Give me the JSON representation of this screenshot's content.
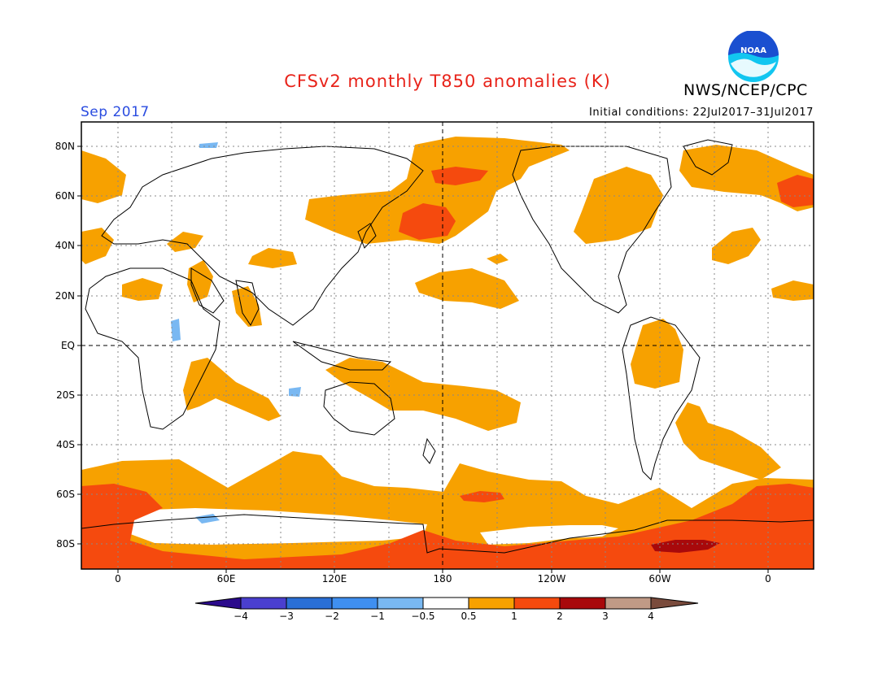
{
  "header": {
    "title": "CFSv2 monthly T850 anomalies (K)",
    "agency": "NWS/NCEP/CPC",
    "logo_text": "NOAA",
    "month": "Sep 2017",
    "initial_conditions": "Initial conditions: 22Jul2017–31Jul2017"
  },
  "map_axes": {
    "lat_labels": [
      "80N",
      "60N",
      "40N",
      "20N",
      "EQ",
      "20S",
      "40S",
      "60S",
      "80S"
    ],
    "lon_labels": [
      "0",
      "60E",
      "120E",
      "180",
      "120W",
      "60W",
      "0"
    ]
  },
  "colorbar": {
    "labels": [
      "−4",
      "−3",
      "−2",
      "−1",
      "−0.5",
      "0.5",
      "1",
      "2",
      "3",
      "4"
    ],
    "colors": [
      "#2b0a8c",
      "#4a3fcf",
      "#2a6fd6",
      "#3f8ff0",
      "#79b8f2",
      "#ffffff",
      "#f7a100",
      "#f54a0e",
      "#a8090b",
      "#c09a86",
      "#7a4b3c"
    ]
  },
  "palette": {
    "title": "#e8231a",
    "month": "#2a4ce0",
    "logo_blue": "#1a4fd0",
    "logo_cyan": "#12c6f0",
    "anom_0_5_1": "#f7a100",
    "anom_1_2": "#f54a0e",
    "anom_2_3": "#a8090b",
    "anom_neg_0_5_1": "#79b8f2"
  }
}
